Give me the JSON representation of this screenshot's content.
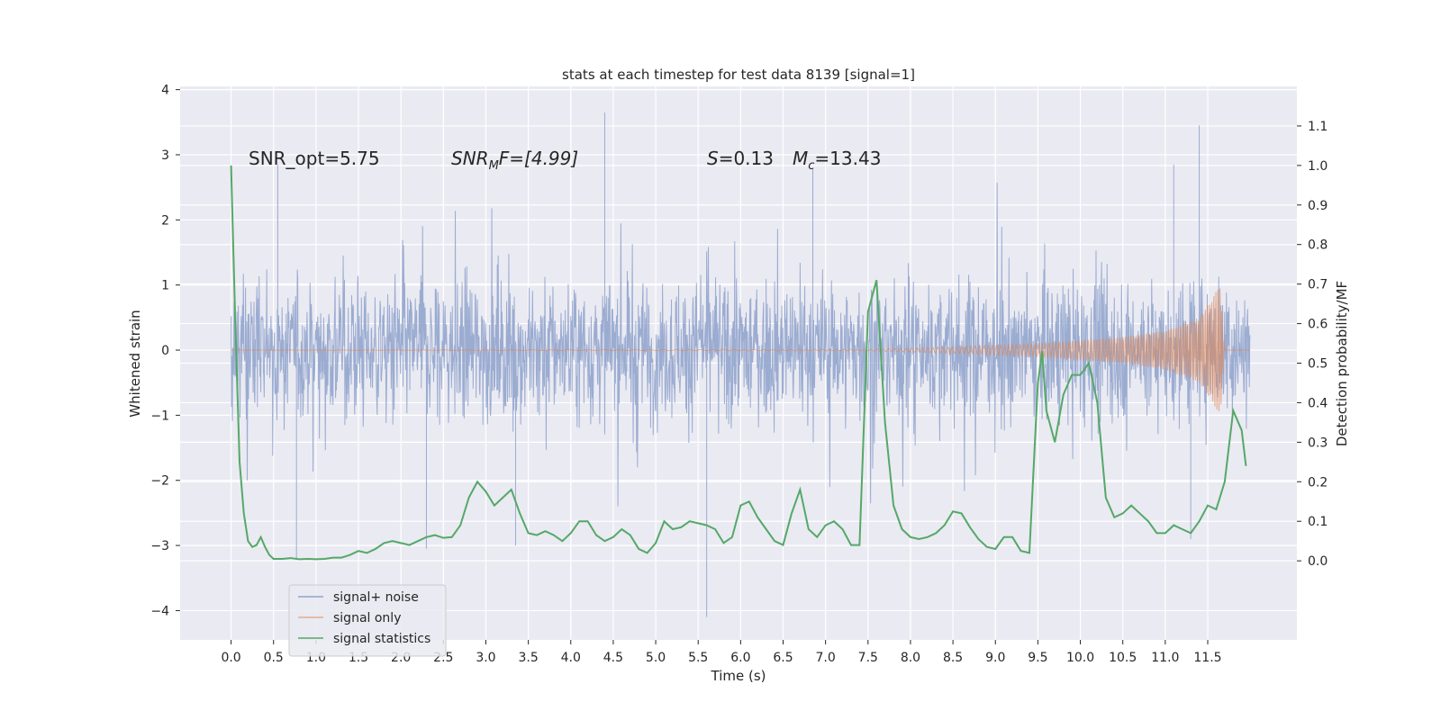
{
  "chart_data": {
    "type": "line",
    "title": "stats at each timestep for test data 8139 [signal=1]",
    "xlabel": "Time (s)",
    "ylabel": "Whitened strain",
    "ylabel_right": "Detection probability/MF",
    "xlim": [
      -0.6,
      12.55
    ],
    "ylim": [
      -4.45,
      4.05
    ],
    "ylim_right": [
      -0.2,
      1.2
    ],
    "x_ticks": [
      "0.0",
      "0.5",
      "1.0",
      "1.5",
      "2.0",
      "2.5",
      "3.0",
      "3.5",
      "4.0",
      "4.5",
      "5.0",
      "5.5",
      "6.0",
      "6.5",
      "7.0",
      "7.5",
      "8.0",
      "8.5",
      "9.0",
      "9.5",
      "10.0",
      "10.5",
      "11.0",
      "11.5"
    ],
    "y_ticks": [
      "4",
      "3",
      "2",
      "1",
      "0",
      "−1",
      "−2",
      "−3",
      "−4"
    ],
    "y_ticks_right": [
      "1.1",
      "1.0",
      "0.9",
      "0.8",
      "0.7",
      "0.6",
      "0.5",
      "0.4",
      "0.3",
      "0.2",
      "0.1",
      "0.0"
    ],
    "grid": true,
    "legend_position": "lower-left",
    "annotations": {
      "snr_opt": "SNR_opt=5.75",
      "snr_mf_sym": "SNR",
      "snr_mf_sub": "M",
      "snr_mf_rest": "F=[4.99]",
      "s_sym": "S",
      "s_rest": "=0.13",
      "mc_sym": "M",
      "mc_sub": "c",
      "mc_rest": "=13.43"
    },
    "series": [
      {
        "name": "signal+ noise",
        "color": "#8fa3cc",
        "x_range": [
          0,
          12.0
        ],
        "envelope_typical": [
          -1.5,
          1.5
        ],
        "notable_peaks": [
          {
            "x": 4.4,
            "y": 3.65
          },
          {
            "x": 11.4,
            "y": 3.45
          },
          {
            "x": 11.1,
            "y": 2.85
          },
          {
            "x": 6.85,
            "y": 2.8
          },
          {
            "x": 0.55,
            "y": 2.85
          },
          {
            "x": 5.6,
            "y": -4.1
          },
          {
            "x": 0.77,
            "y": -3.2
          },
          {
            "x": 2.3,
            "y": -3.05
          },
          {
            "x": 3.35,
            "y": -3.0
          },
          {
            "x": 11.3,
            "y": -2.9
          }
        ]
      },
      {
        "name": "signal only",
        "color": "#dd8452",
        "description_points": [
          {
            "x": 0.0,
            "amp": 0.0
          },
          {
            "x": 7.5,
            "amp": 0.01
          },
          {
            "x": 8.5,
            "amp": 0.05
          },
          {
            "x": 9.5,
            "amp": 0.1
          },
          {
            "x": 10.5,
            "amp": 0.2
          },
          {
            "x": 11.0,
            "amp": 0.3
          },
          {
            "x": 11.4,
            "amp": 0.5
          },
          {
            "x": 11.65,
            "amp": 1.0
          },
          {
            "x": 11.7,
            "amp": 0.0
          },
          {
            "x": 12.0,
            "amp": 0.0
          }
        ]
      },
      {
        "name": "signal statistics",
        "color": "#55a868",
        "axis": "right",
        "x": [
          0.0,
          0.05,
          0.1,
          0.15,
          0.2,
          0.25,
          0.3,
          0.35,
          0.4,
          0.45,
          0.5,
          0.6,
          0.7,
          0.8,
          0.9,
          1.0,
          1.1,
          1.2,
          1.3,
          1.4,
          1.5,
          1.6,
          1.7,
          1.8,
          1.9,
          2.0,
          2.1,
          2.2,
          2.3,
          2.4,
          2.5,
          2.6,
          2.7,
          2.8,
          2.9,
          3.0,
          3.1,
          3.2,
          3.3,
          3.4,
          3.5,
          3.6,
          3.7,
          3.8,
          3.9,
          4.0,
          4.1,
          4.2,
          4.3,
          4.4,
          4.5,
          4.6,
          4.7,
          4.8,
          4.9,
          5.0,
          5.1,
          5.2,
          5.3,
          5.4,
          5.5,
          5.6,
          5.7,
          5.8,
          5.9,
          6.0,
          6.1,
          6.2,
          6.3,
          6.4,
          6.5,
          6.6,
          6.7,
          6.8,
          6.9,
          7.0,
          7.1,
          7.2,
          7.3,
          7.4,
          7.5,
          7.6,
          7.7,
          7.8,
          7.9,
          8.0,
          8.1,
          8.2,
          8.3,
          8.4,
          8.5,
          8.6,
          8.7,
          8.8,
          8.9,
          9.0,
          9.1,
          9.2,
          9.3,
          9.4,
          9.5,
          9.55,
          9.6,
          9.7,
          9.8,
          9.9,
          10.0,
          10.1,
          10.2,
          10.3,
          10.4,
          10.5,
          10.6,
          10.7,
          10.8,
          10.9,
          11.0,
          11.1,
          11.2,
          11.3,
          11.4,
          11.5,
          11.6,
          11.7,
          11.8,
          11.9,
          11.95
        ],
        "values": [
          1.0,
          0.6,
          0.25,
          0.12,
          0.05,
          0.035,
          0.04,
          0.06,
          0.035,
          0.015,
          0.005,
          0.005,
          0.007,
          0.004,
          0.005,
          0.004,
          0.005,
          0.008,
          0.008,
          0.015,
          0.025,
          0.02,
          0.03,
          0.045,
          0.05,
          0.045,
          0.04,
          0.05,
          0.06,
          0.065,
          0.058,
          0.06,
          0.09,
          0.16,
          0.2,
          0.175,
          0.14,
          0.16,
          0.18,
          0.12,
          0.07,
          0.065,
          0.075,
          0.065,
          0.05,
          0.07,
          0.1,
          0.1,
          0.065,
          0.05,
          0.06,
          0.08,
          0.065,
          0.03,
          0.02,
          0.045,
          0.1,
          0.08,
          0.085,
          0.1,
          0.095,
          0.09,
          0.08,
          0.045,
          0.06,
          0.14,
          0.15,
          0.11,
          0.08,
          0.05,
          0.04,
          0.12,
          0.18,
          0.08,
          0.06,
          0.09,
          0.1,
          0.08,
          0.04,
          0.04,
          0.63,
          0.71,
          0.35,
          0.14,
          0.08,
          0.06,
          0.055,
          0.06,
          0.07,
          0.09,
          0.125,
          0.12,
          0.085,
          0.055,
          0.035,
          0.03,
          0.06,
          0.06,
          0.025,
          0.02,
          0.45,
          0.53,
          0.38,
          0.3,
          0.42,
          0.47,
          0.47,
          0.5,
          0.4,
          0.16,
          0.11,
          0.12,
          0.14,
          0.12,
          0.1,
          0.07,
          0.07,
          0.09,
          0.08,
          0.07,
          0.1,
          0.14,
          0.13,
          0.2,
          0.38,
          0.33,
          0.24
        ]
      }
    ]
  }
}
